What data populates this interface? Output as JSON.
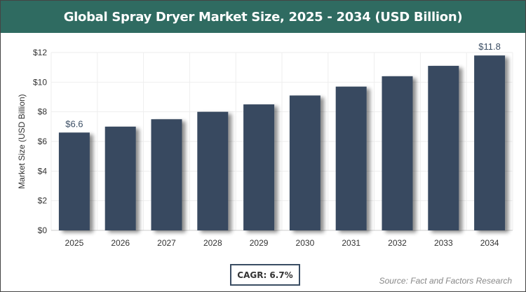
{
  "chart_data": {
    "type": "bar",
    "title": "Global Spray Dryer Market Size, 2025 - 2034 (USD Billion)",
    "xlabel": "",
    "ylabel": "Market Size (USD Billion)",
    "categories": [
      "2025",
      "2026",
      "2027",
      "2028",
      "2029",
      "2030",
      "2031",
      "2032",
      "2033",
      "2034"
    ],
    "values": [
      6.6,
      7.0,
      7.5,
      8.0,
      8.5,
      9.1,
      9.7,
      10.4,
      11.1,
      11.8
    ],
    "data_labels": {
      "0": "$6.6",
      "9": "$11.8"
    },
    "ylim": [
      0,
      12
    ],
    "yticks": [
      "$0",
      "$2",
      "$4",
      "$6",
      "$8",
      "$10",
      "$12"
    ],
    "grid": true,
    "bar_color": "#374a60"
  },
  "header": {
    "title": "Global Spray Dryer Market Size, 2025 - 2034 (USD Billion)",
    "color": "#2f6b61"
  },
  "footer": {
    "cagr": "CAGR: 6.7%",
    "source": "Source: Fact and Factors Research"
  }
}
